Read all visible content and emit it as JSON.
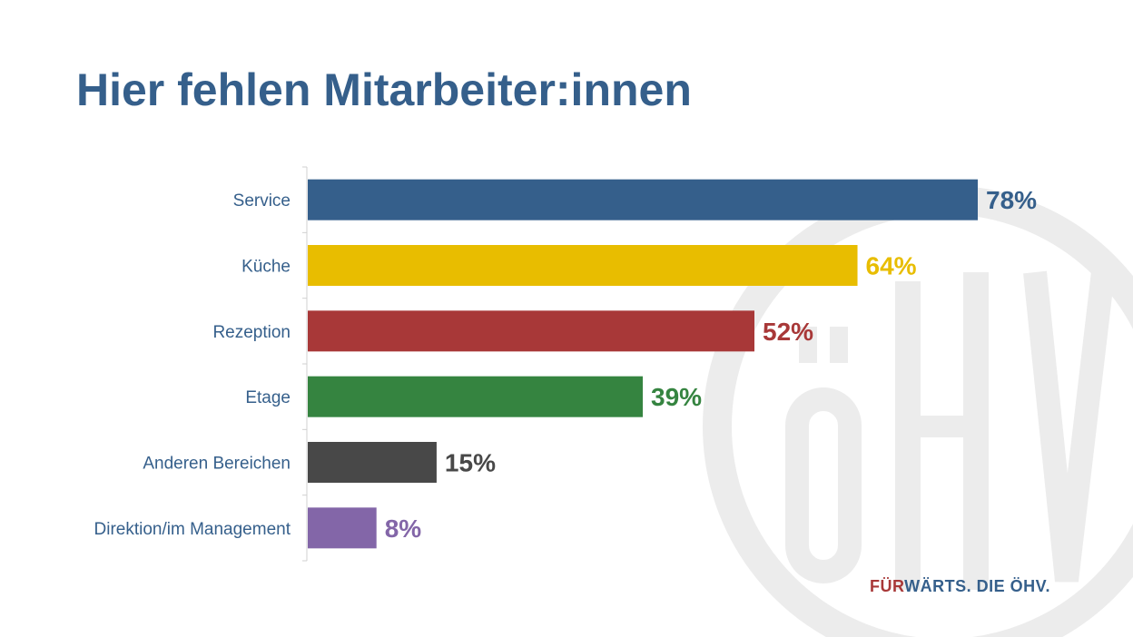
{
  "slide": {
    "title": "Hier fehlen Mitarbeiter:innen",
    "brand": {
      "part1": "FÜR",
      "part2": "WÄRTS. DIE ÖHV.",
      "color1": "#a83838",
      "color2": "#355f8b"
    },
    "watermark_letters": "ÖHV"
  },
  "chart_data": {
    "type": "bar",
    "orientation": "horizontal",
    "categories": [
      "Service",
      "Küche",
      "Rezeption",
      "Etage",
      "Anderen Bereichen",
      "Direktion/im Management"
    ],
    "values": [
      78,
      64,
      52,
      39,
      15,
      8
    ],
    "value_labels": [
      "78%",
      "64%",
      "52%",
      "39%",
      "15%",
      "8%"
    ],
    "colors": [
      "#355f8b",
      "#e8bd00",
      "#a83838",
      "#358440",
      "#484848",
      "#8366a8"
    ],
    "unit": "%",
    "xlim": [
      0,
      100
    ],
    "grid": false,
    "legend": "none"
  }
}
